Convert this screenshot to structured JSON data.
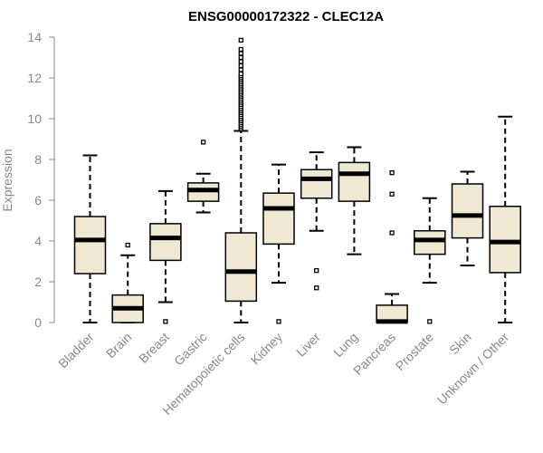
{
  "chart_data": {
    "type": "boxplot",
    "title": "ENSG00000172322 - CLEC12A",
    "xlabel": "",
    "ylabel": "Expression",
    "ylim": [
      0,
      14
    ],
    "yticks": [
      0,
      2,
      4,
      6,
      8,
      10,
      12,
      14
    ],
    "box_fill": "#efe8d2",
    "box_stroke": "#000000",
    "axis_color": "#888888",
    "categories": [
      "Bladder",
      "Brain",
      "Breast",
      "Gastric",
      "Hematopoietic cells",
      "Kidney",
      "Liver",
      "Lung",
      "Pancreas",
      "Prostate",
      "Skin",
      "Unknown / Other"
    ],
    "boxes": [
      {
        "name": "Bladder",
        "whisker_low": 0.0,
        "q1": 2.4,
        "median": 4.05,
        "q3": 5.2,
        "whisker_high": 8.2,
        "outliers": []
      },
      {
        "name": "Brain",
        "whisker_low": 0.0,
        "q1": 0.0,
        "median": 0.7,
        "q3": 1.35,
        "whisker_high": 3.3,
        "outliers": [
          3.8
        ]
      },
      {
        "name": "Breast",
        "whisker_low": 1.0,
        "q1": 3.05,
        "median": 4.15,
        "q3": 4.85,
        "whisker_high": 6.45,
        "outliers": [
          0.05
        ]
      },
      {
        "name": "Gastric",
        "whisker_low": 5.4,
        "q1": 5.95,
        "median": 6.5,
        "q3": 6.85,
        "whisker_high": 7.3,
        "outliers": [
          8.85
        ]
      },
      {
        "name": "Hematopoietic cells",
        "whisker_low": 0.0,
        "q1": 1.05,
        "median": 2.5,
        "q3": 4.4,
        "whisker_high": 9.4,
        "outliers": [
          9.5,
          9.6,
          9.7,
          9.8,
          9.9,
          10.0,
          10.1,
          10.2,
          10.3,
          10.4,
          10.5,
          10.6,
          10.7,
          10.8,
          10.9,
          11.0,
          11.1,
          11.2,
          11.3,
          11.4,
          11.5,
          11.6,
          11.7,
          11.8,
          11.9,
          12.0,
          12.1,
          12.2,
          12.4,
          12.6,
          12.8,
          13.0,
          13.2,
          13.4,
          13.85
        ]
      },
      {
        "name": "Kidney",
        "whisker_low": 1.95,
        "q1": 3.85,
        "median": 5.6,
        "q3": 6.35,
        "whisker_high": 7.75,
        "outliers": [
          0.05
        ]
      },
      {
        "name": "Liver",
        "whisker_low": 4.5,
        "q1": 6.1,
        "median": 7.05,
        "q3": 7.5,
        "whisker_high": 8.35,
        "outliers": [
          2.55,
          1.7
        ]
      },
      {
        "name": "Lung",
        "whisker_low": 3.35,
        "q1": 5.95,
        "median": 7.3,
        "q3": 7.85,
        "whisker_high": 8.6,
        "outliers": []
      },
      {
        "name": "Pancreas",
        "whisker_low": 0.0,
        "q1": 0.0,
        "median": 0.05,
        "q3": 0.85,
        "whisker_high": 1.4,
        "outliers": [
          7.35,
          6.3,
          4.4
        ]
      },
      {
        "name": "Prostate",
        "whisker_low": 1.95,
        "q1": 3.35,
        "median": 4.05,
        "q3": 4.5,
        "whisker_high": 6.1,
        "outliers": [
          0.05
        ]
      },
      {
        "name": "Skin",
        "whisker_low": 2.8,
        "q1": 4.15,
        "median": 5.25,
        "q3": 6.8,
        "whisker_high": 7.4,
        "outliers": []
      },
      {
        "name": "Unknown / Other",
        "whisker_low": 0.0,
        "q1": 2.45,
        "median": 3.95,
        "q3": 5.7,
        "whisker_high": 10.1,
        "outliers": []
      }
    ]
  }
}
